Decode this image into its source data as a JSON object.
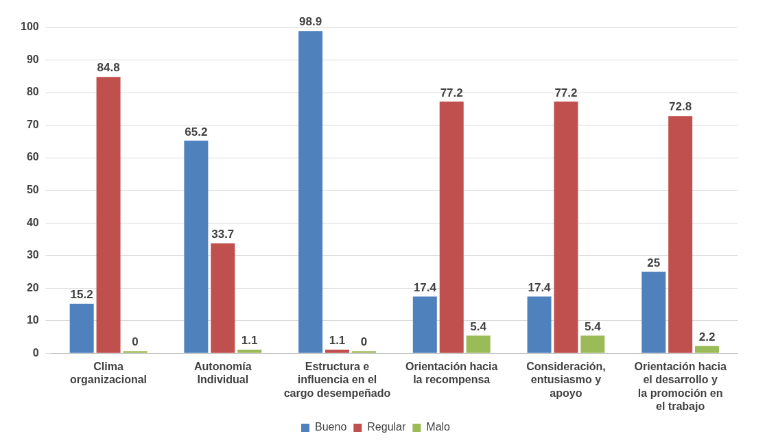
{
  "chart_data": {
    "type": "bar",
    "categories": [
      "Clima organizacional",
      "Autonomía Individual",
      "Estructura e influencia en el cargo desempeñado",
      "Orientación hacia la recompensa",
      "Consideración, entusiasmo y apoyo",
      "Orientación hacia el desarrollo y la promoción en el trabajo"
    ],
    "series": [
      {
        "name": "Bueno",
        "color": "#4f81bd",
        "values": [
          15.2,
          65.2,
          98.9,
          17.4,
          17.4,
          25
        ]
      },
      {
        "name": "Regular",
        "color": "#c0504d",
        "values": [
          84.8,
          33.7,
          1.1,
          77.2,
          77.2,
          72.8
        ]
      },
      {
        "name": "Malo",
        "color": "#9bbb59",
        "values": [
          0,
          1.1,
          0,
          5.4,
          5.4,
          2.2
        ]
      }
    ],
    "ylim": [
      0,
      100
    ],
    "yticks": [
      0,
      10,
      20,
      30,
      40,
      50,
      60,
      70,
      80,
      90,
      100
    ],
    "grid": "y",
    "legend": "bottom",
    "data_labels": true
  }
}
